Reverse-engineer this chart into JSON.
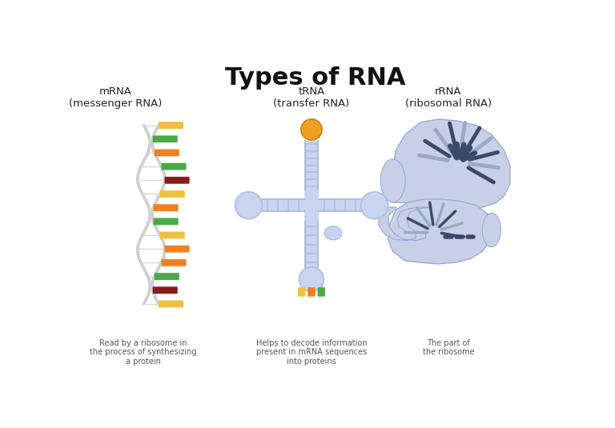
{
  "title": "Types of RNA",
  "title_fontsize": 22,
  "bg_color": "#ffffff",
  "labels": {
    "mrna_title": "mRNA\n(messenger RNA)",
    "trna_title": "tRNA\n(transfer RNA)",
    "rrna_title": "rRNA\n(ribosomal RNA)",
    "mrna_desc": "Read by a ribosome in\nthe process of synthesizing\na protein",
    "trna_desc": "Helps to decode information\npresent in mRNA sequences\ninto proteins",
    "rrna_desc": "The part of\nthe ribosome"
  },
  "mrna": {
    "backbone_color": "#d8d8d8",
    "rung_colors": [
      "#f0c040",
      "#8b1a1a",
      "#4aaa44",
      "#f08020",
      "#f08020",
      "#f0c040",
      "#4aaa44",
      "#f08020",
      "#f0c040",
      "#8b1a1a",
      "#4aaa44",
      "#f08020",
      "#4aaa44",
      "#f0c040"
    ]
  },
  "trna": {
    "stem_color": "#c8d4f0",
    "rung_color": "#b0bedd",
    "ball_color": "#f0a020",
    "ball_edge": "#d08010",
    "anticodon_colors": [
      "#f0c040",
      "#f08020",
      "#4aaa44"
    ]
  },
  "rrna": {
    "blob_color": "#c8d0e8",
    "blob_edge": "#9aaad0",
    "stripe_color": "#3a4a6a",
    "stripe_light": "#9aaabf"
  }
}
